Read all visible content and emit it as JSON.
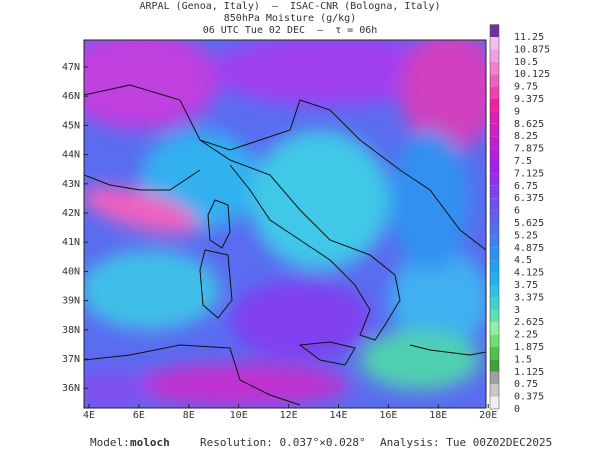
{
  "header": {
    "lines": [
      "ARPAL (Genoa, Italy)  –  ISAC-CNR (Bologna, Italy)",
      "850hPa Moisture (g/kg)",
      "06 UTC Tue 02 DEC  –  τ = 06h"
    ]
  },
  "map": {
    "lat_labels": [
      "47N",
      "46N",
      "45N",
      "44N",
      "43N",
      "42N",
      "41N",
      "40N",
      "39N",
      "38N",
      "37N",
      "36N"
    ],
    "lon_labels": [
      "4E",
      "6E",
      "8E",
      "10E",
      "12E",
      "14E",
      "16E",
      "18E",
      "20E"
    ]
  },
  "colorbar": {
    "levels": [
      0,
      0.375,
      0.75,
      1.125,
      1.5,
      1.875,
      2.25,
      2.625,
      3,
      3.375,
      3.75,
      4.125,
      4.5,
      4.875,
      5.25,
      5.625,
      6,
      6.375,
      6.75,
      7.125,
      7.5,
      7.875,
      8.25,
      8.625,
      9,
      9.375,
      9.75,
      10.125,
      10.5,
      10.875,
      11.25
    ],
    "colors": [
      "#f0f0f0",
      "#c8c8c8",
      "#a0a0a0",
      "#40a040",
      "#50c050",
      "#70e070",
      "#90f0a0",
      "#60e0b0",
      "#40d0d0",
      "#30c0e0",
      "#20b0f0",
      "#20a0f0",
      "#3090f0",
      "#4080f0",
      "#5070f0",
      "#6060f0",
      "#7050f0",
      "#8040f0",
      "#9030f0",
      "#a020f0",
      "#b020e0",
      "#c020d0",
      "#d020c0",
      "#e020b0",
      "#f020a0",
      "#f040b0",
      "#f060c0",
      "#f080d0",
      "#f0a0e0",
      "#f0c0f0",
      "#7030a0"
    ]
  },
  "footer": {
    "model_label": "Model:",
    "model": "moloch",
    "resolution": "Resolution: 0.037°×0.028°",
    "analysis": "Analysis: Tue 00Z02DEC2025"
  }
}
